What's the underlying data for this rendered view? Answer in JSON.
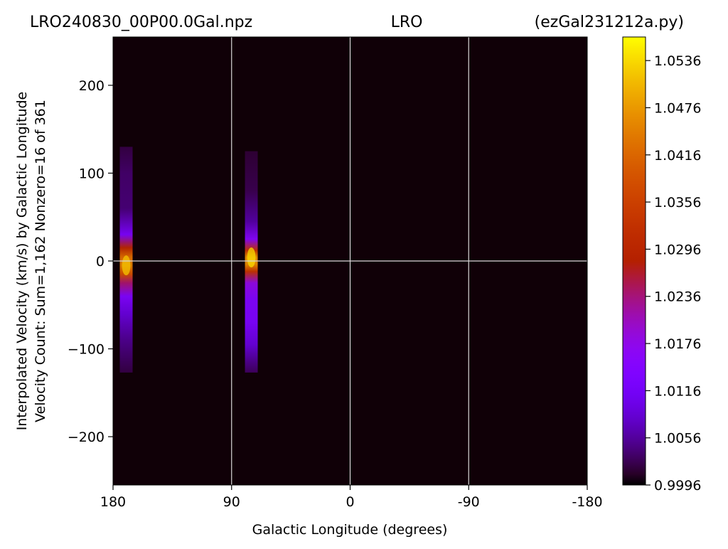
{
  "title": {
    "left": "LRO240830_00P00.0Gal.npz",
    "center": "LRO",
    "right": "(ezGal231212a.py)"
  },
  "chart_data": {
    "type": "heatmap",
    "xlabel": "Galactic Longitude (degrees)",
    "ylabel_line1": "Interpolated Velocity (km/s) by Galactic Longitude",
    "ylabel_line2": "Velocity Count: Sum=1,162 Nonzero=16 of 361",
    "xlim": [
      180,
      -180
    ],
    "ylim": [
      -255,
      255
    ],
    "x_ticks": [
      180,
      90,
      0,
      -90,
      -180
    ],
    "x_tick_labels": [
      "180",
      "90",
      "0",
      "-90",
      "-180"
    ],
    "y_ticks": [
      200,
      100,
      0,
      -100,
      -200
    ],
    "y_tick_labels": [
      "200",
      "100",
      "0",
      "−100",
      "−200"
    ],
    "grid_lines_x": [
      90,
      0,
      -90
    ],
    "grid_lines_y": [
      0
    ],
    "colormap": "gnuplot",
    "colorbar": {
      "min": 0.9996,
      "max": 1.0566,
      "ticks": [
        0.9996,
        1.0056,
        1.0116,
        1.0176,
        1.0236,
        1.0296,
        1.0356,
        1.0416,
        1.0476,
        1.0536
      ],
      "tick_labels": [
        "0.9996",
        "1.0056",
        "1.0116",
        "1.0176",
        "1.0236",
        "1.0296",
        "1.0356",
        "1.0416",
        "1.0476",
        "1.0536"
      ]
    },
    "background_value": 0.9996,
    "streaks": [
      {
        "longitude": 170,
        "velocity_range": [
          -127,
          130
        ],
        "profile": [
          {
            "v": 130,
            "value": 1.002
          },
          {
            "v": 100,
            "value": 1.0035
          },
          {
            "v": 60,
            "value": 1.004
          },
          {
            "v": 30,
            "value": 1.013
          },
          {
            "v": 15,
            "value": 1.03
          },
          {
            "v": 5,
            "value": 1.042
          },
          {
            "v": -5,
            "value": 1.045
          },
          {
            "v": -15,
            "value": 1.038
          },
          {
            "v": -25,
            "value": 1.024
          },
          {
            "v": -40,
            "value": 1.014
          },
          {
            "v": -60,
            "value": 1.009
          },
          {
            "v": -90,
            "value": 1.005
          },
          {
            "v": -127,
            "value": 1.002
          }
        ]
      },
      {
        "longitude": 75,
        "velocity_range": [
          -127,
          125
        ],
        "profile": [
          {
            "v": 125,
            "value": 1.0015
          },
          {
            "v": 80,
            "value": 1.0025
          },
          {
            "v": 45,
            "value": 1.006
          },
          {
            "v": 25,
            "value": 1.015
          },
          {
            "v": 12,
            "value": 1.033
          },
          {
            "v": 4,
            "value": 1.047
          },
          {
            "v": -4,
            "value": 1.046
          },
          {
            "v": -12,
            "value": 1.033
          },
          {
            "v": -25,
            "value": 1.018
          },
          {
            "v": -45,
            "value": 1.014
          },
          {
            "v": -70,
            "value": 1.013
          },
          {
            "v": -95,
            "value": 1.009
          },
          {
            "v": -127,
            "value": 1.003
          }
        ]
      }
    ]
  }
}
